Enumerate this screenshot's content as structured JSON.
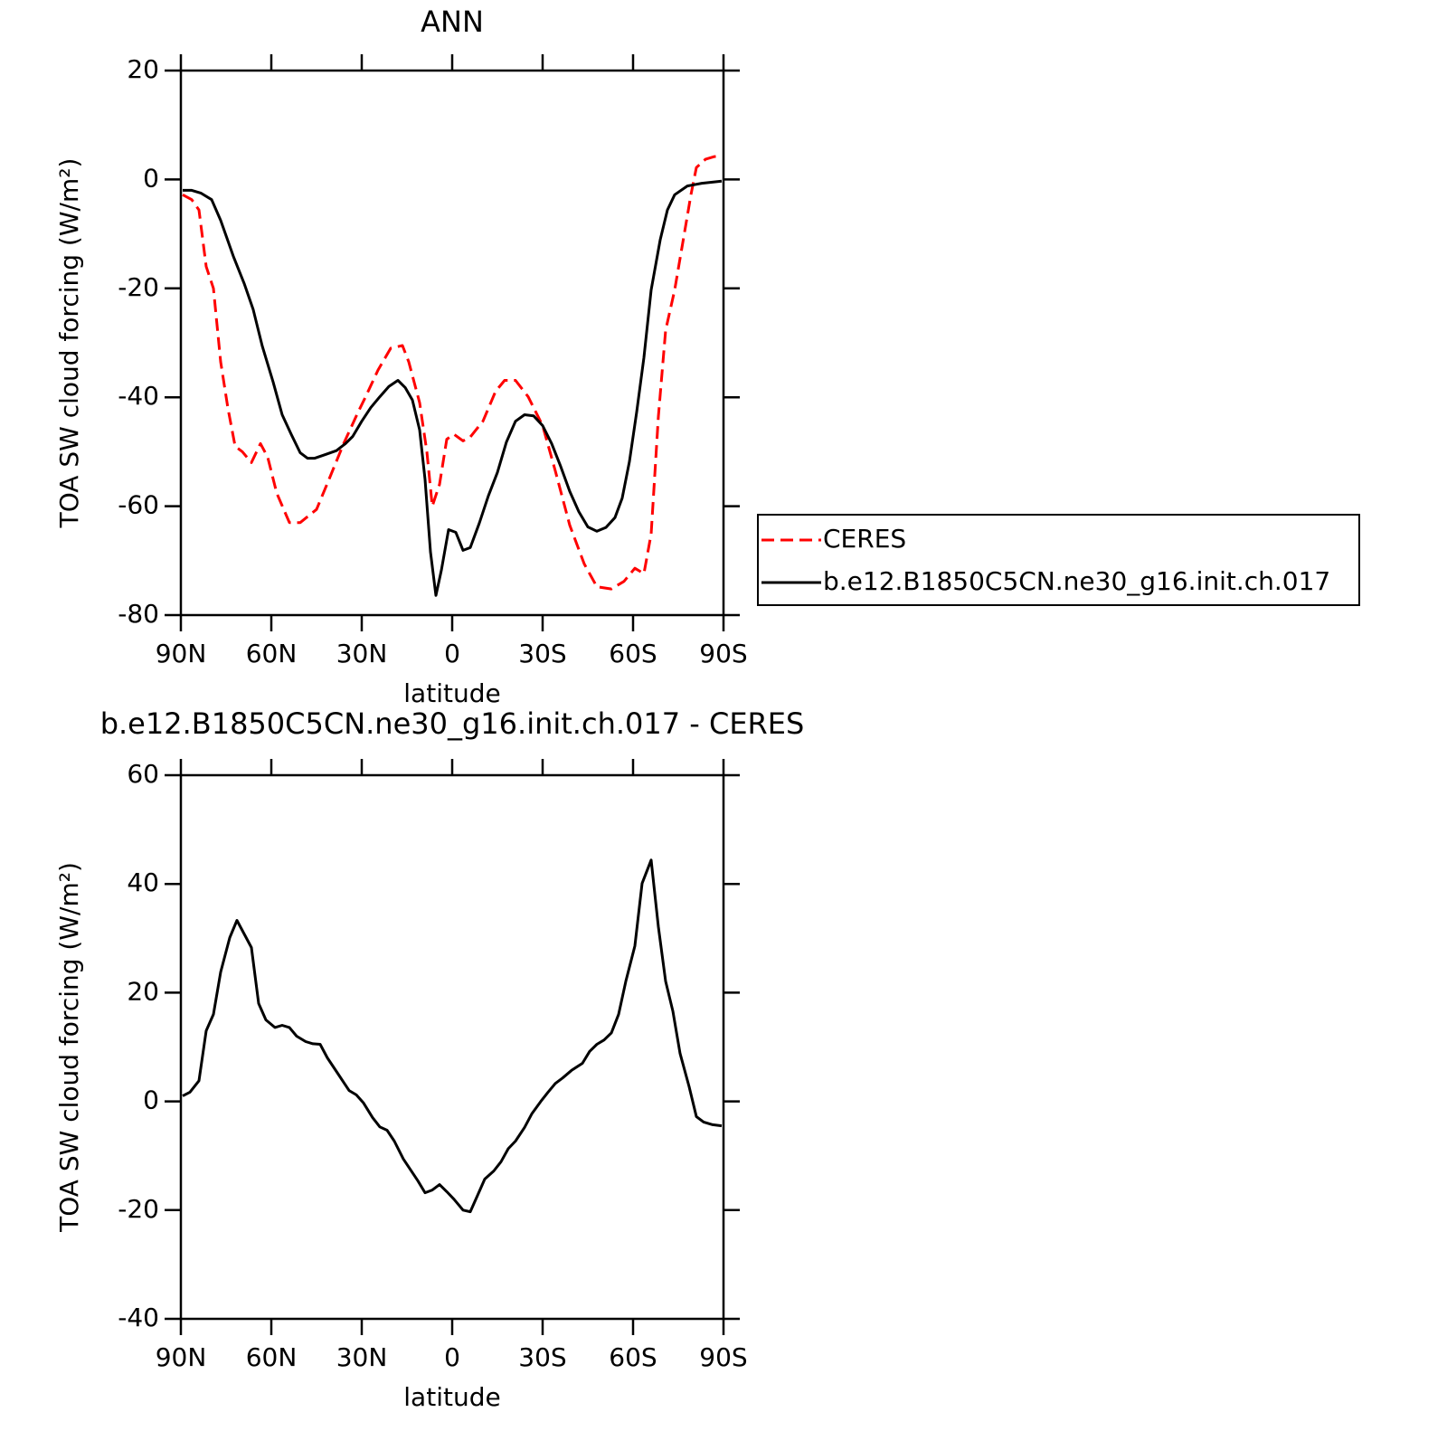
{
  "chart_data": [
    {
      "type": "line",
      "title": "ANN",
      "xlabel": "latitude",
      "ylabel": "TOA SW cloud forcing (W/m²)",
      "xlim": [
        90,
        -90
      ],
      "ylim": [
        -80,
        20
      ],
      "xticks": [
        {
          "value": 90,
          "label": "90N"
        },
        {
          "value": 60,
          "label": "60N"
        },
        {
          "value": 30,
          "label": "30N"
        },
        0,
        {
          "value": -30,
          "label": "30S"
        },
        {
          "value": -60,
          "label": "60S"
        },
        {
          "value": -90,
          "label": "90S"
        }
      ],
      "yticks": [
        -80,
        -60,
        -40,
        -20,
        0,
        20
      ],
      "legend": "right",
      "series": [
        {
          "name": "CERES",
          "color": "#ff0000",
          "dashed": true,
          "x": [
            89.4,
            86.4,
            84,
            81.6,
            79.2,
            76.8,
            74.4,
            72,
            69.6,
            66.6,
            63.6,
            61.2,
            58.2,
            54,
            50.4,
            45,
            40.8,
            36,
            31.2,
            28.8,
            24.6,
            20.4,
            16.5,
            14.4,
            10.8,
            8.4,
            6.6,
            4.2,
            1.8,
            -0.6,
            -3.6,
            -6,
            -10.2,
            -14.4,
            -17.4,
            -21,
            -25.2,
            -30,
            -34.2,
            -39,
            -43.8,
            -48,
            -52.8,
            -57,
            -60.6,
            -63.6,
            -66,
            -68.4,
            -70.8,
            -73.8,
            -76.8,
            -79.2,
            -81,
            -84,
            -87,
            -89.4
          ],
          "values": [
            -2.8,
            -3.7,
            -5.6,
            -16,
            -20,
            -33.5,
            -42,
            -49,
            -50,
            -52,
            -48.5,
            -51,
            -57.6,
            -63,
            -63,
            -60.6,
            -55,
            -48.5,
            -42.7,
            -40,
            -35,
            -31,
            -30.5,
            -33.5,
            -41,
            -50,
            -60,
            -56,
            -47.7,
            -46.8,
            -48,
            -47.3,
            -44.4,
            -38.9,
            -36.9,
            -36.9,
            -39.9,
            -45.2,
            -53.5,
            -63.5,
            -70.6,
            -74.8,
            -75.2,
            -73.8,
            -71.4,
            -72.4,
            -65.1,
            -43.5,
            -27.7,
            -20.3,
            -10.6,
            -2.8,
            2.2,
            3.7,
            4.2,
            4.3
          ]
        },
        {
          "name": "b.e12.B1850C5CN.ne30_g16.init.ch.017",
          "color": "#000000",
          "dashed": false,
          "x": [
            89.4,
            86.4,
            83.4,
            79.8,
            76.8,
            72.6,
            69,
            66,
            63,
            59.4,
            56.4,
            53.4,
            50.4,
            48,
            45.6,
            42,
            38.4,
            35.4,
            33,
            30,
            27,
            24,
            21,
            18,
            15.6,
            13.2,
            10.8,
            9,
            7.2,
            5.4,
            3.6,
            1.2,
            -1.2,
            -3.6,
            -6,
            -9,
            -12,
            -15,
            -18,
            -21,
            -24,
            -27,
            -30,
            -33,
            -36,
            -39,
            -42,
            -45,
            -48,
            -51,
            -54,
            -56.4,
            -58.8,
            -61.2,
            -63.6,
            -66,
            -69,
            -71.4,
            -73.8,
            -78,
            -82.8,
            -89.4
          ],
          "values": [
            -2,
            -2,
            -2.5,
            -3.7,
            -7.5,
            -14.1,
            -19.1,
            -23.9,
            -30.6,
            -37.2,
            -43.2,
            -46.8,
            -50.2,
            -51.2,
            -51.2,
            -50.5,
            -49.8,
            -48.5,
            -47.2,
            -44.4,
            -41.9,
            -39.9,
            -38,
            -36.9,
            -38.2,
            -40.5,
            -46,
            -55.1,
            -68.4,
            -76.4,
            -71.8,
            -64.3,
            -64.8,
            -68.1,
            -67.6,
            -63.1,
            -58.1,
            -53.8,
            -48.2,
            -44.4,
            -43.2,
            -43.4,
            -45.2,
            -48.5,
            -52.7,
            -57.3,
            -61,
            -63.8,
            -64.6,
            -63.9,
            -62.1,
            -58.5,
            -51.8,
            -42.7,
            -32.7,
            -20.3,
            -11.1,
            -5.6,
            -2.8,
            -1.2,
            -0.7,
            -0.3
          ]
        }
      ]
    },
    {
      "type": "line",
      "title": "b.e12.B1850C5CN.ne30_g16.init.ch.017 - CERES",
      "xlabel": "latitude",
      "ylabel": "TOA SW cloud forcing (W/m²)",
      "xlim": [
        90,
        -90
      ],
      "ylim": [
        -40,
        60
      ],
      "xticks": [
        {
          "value": 90,
          "label": "90N"
        },
        {
          "value": 60,
          "label": "60N"
        },
        {
          "value": 30,
          "label": "30N"
        },
        0,
        {
          "value": -30,
          "label": "30S"
        },
        {
          "value": -60,
          "label": "60S"
        },
        {
          "value": -90,
          "label": "90S"
        }
      ],
      "yticks": [
        -40,
        -20,
        0,
        20,
        40,
        60
      ],
      "series": [
        {
          "color": "#000000",
          "dashed": false,
          "x": [
            89.4,
            87,
            84,
            81.6,
            79.2,
            76.8,
            73.8,
            71.4,
            69,
            66.6,
            64.2,
            61.8,
            58.8,
            56.4,
            54,
            51.6,
            48.6,
            46.2,
            43.8,
            41.4,
            37.8,
            34.2,
            31.8,
            29.4,
            26.4,
            24,
            21.6,
            19.2,
            16.2,
            13.2,
            11.4,
            9,
            6.6,
            4.2,
            1.8,
            -0.6,
            -3.6,
            -6,
            -8.4,
            -10.8,
            -13.8,
            -16.2,
            -18.6,
            -21,
            -24,
            -26.4,
            -29.4,
            -31.8,
            -34.2,
            -36.6,
            -39.6,
            -43.2,
            -45.6,
            -48,
            -50.4,
            -52.8,
            -55.2,
            -57.6,
            -60.6,
            -63,
            -66,
            -68.4,
            -70.8,
            -73.2,
            -75.6,
            -78.6,
            -81,
            -83.4,
            -86.4,
            -89.4
          ],
          "values": [
            1,
            1.7,
            3.8,
            13,
            16,
            23.8,
            30.1,
            33.3,
            30.8,
            28.3,
            18,
            15,
            13.6,
            14,
            13.6,
            12,
            11,
            10.6,
            10.5,
            8,
            5,
            2,
            1.2,
            -0.3,
            -3,
            -4.7,
            -5.3,
            -7.3,
            -10.6,
            -13.1,
            -14.6,
            -16.8,
            -16.3,
            -15.3,
            -16.6,
            -18,
            -20,
            -20.3,
            -17.3,
            -14.3,
            -12.8,
            -11.1,
            -8.7,
            -7.3,
            -4.8,
            -2.3,
            0,
            1.7,
            3.3,
            4.3,
            5.7,
            7,
            9.2,
            10.5,
            11.3,
            12.6,
            16,
            22.1,
            28.6,
            40.1,
            44.4,
            32.1,
            22.1,
            16.6,
            8.8,
            2.7,
            -2.8,
            -3.8,
            -4.3,
            -4.5
          ]
        }
      ]
    }
  ]
}
